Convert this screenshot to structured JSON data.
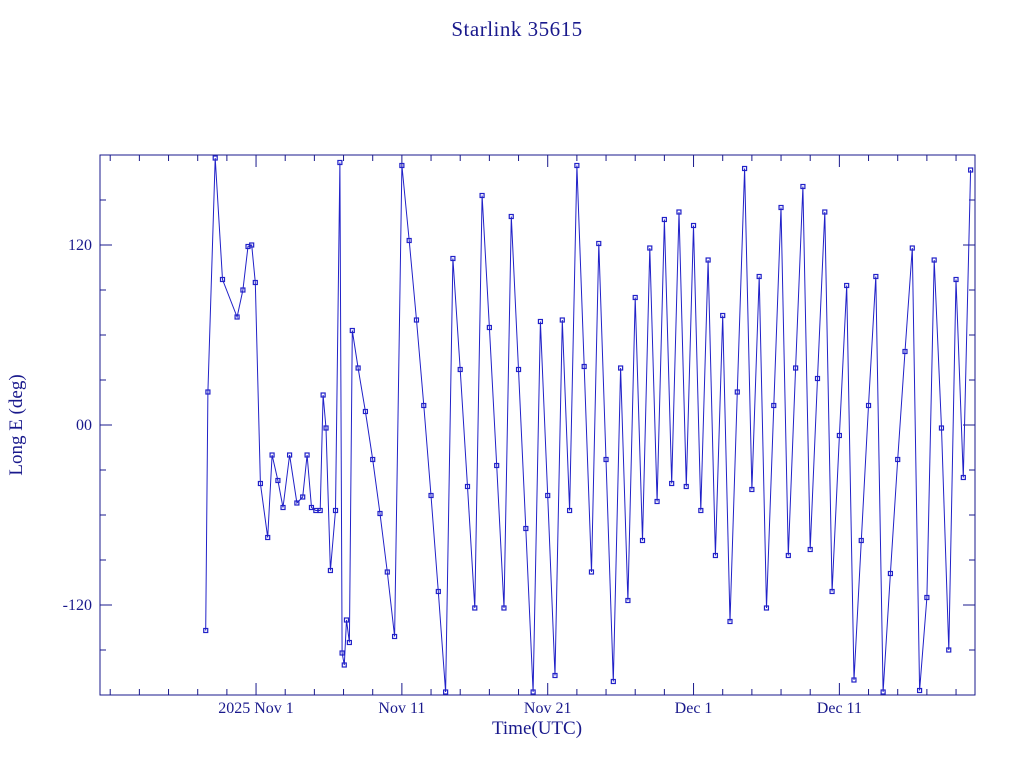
{
  "chart_data": {
    "type": "line",
    "title": "Starlink 35615",
    "xlabel": "Time(UTC)",
    "ylabel": "Long E (deg)",
    "xlim": [
      -6.7,
      53.3
    ],
    "ylim": [
      -180,
      180
    ],
    "x_ticks": [
      {
        "label": "2025 Nov 1",
        "t": 4
      },
      {
        "label": "Nov 11",
        "t": 14
      },
      {
        "label": "Nov 21",
        "t": 24
      },
      {
        "label": "Dec 1",
        "t": 34
      },
      {
        "label": "Dec 11",
        "t": 44
      }
    ],
    "y_ticks": [
      {
        "label": "120",
        "v": 120
      },
      {
        "label": "00",
        "v": 0
      },
      {
        "label": "-120",
        "v": -120
      }
    ],
    "x_minor_step": 2,
    "y_minor_step": 30,
    "grid": false,
    "legend": null,
    "marker": "open-square",
    "colors": {
      "text": "#19198c",
      "frame": "#19198c",
      "series": "#2121c8"
    },
    "points": [
      [
        0.55,
        -137
      ],
      [
        0.7,
        22
      ],
      [
        1.2,
        178
      ],
      [
        1.7,
        97
      ],
      [
        2.7,
        72
      ],
      [
        3.1,
        90
      ],
      [
        3.45,
        119
      ],
      [
        3.7,
        120
      ],
      [
        3.95,
        95
      ],
      [
        4.3,
        -39
      ],
      [
        4.8,
        -75
      ],
      [
        5.1,
        -20
      ],
      [
        5.5,
        -37
      ],
      [
        5.85,
        -55
      ],
      [
        6.3,
        -20
      ],
      [
        6.8,
        -52
      ],
      [
        7.2,
        -48
      ],
      [
        7.5,
        -20
      ],
      [
        7.8,
        -55
      ],
      [
        8.1,
        -57
      ],
      [
        8.4,
        -57
      ],
      [
        8.6,
        20
      ],
      [
        8.8,
        -2
      ],
      [
        9.1,
        -97
      ],
      [
        9.45,
        -57
      ],
      [
        9.75,
        175
      ],
      [
        9.9,
        -152
      ],
      [
        10.05,
        -160
      ],
      [
        10.2,
        -130
      ],
      [
        10.4,
        -145
      ],
      [
        10.6,
        63
      ],
      [
        11,
        38
      ],
      [
        11.5,
        9
      ],
      [
        12,
        -23
      ],
      [
        12.5,
        -59
      ],
      [
        13,
        -98
      ],
      [
        13.5,
        -141
      ],
      [
        14,
        173
      ],
      [
        14.5,
        123
      ],
      [
        15,
        70
      ],
      [
        15.5,
        13
      ],
      [
        16,
        -47
      ],
      [
        16.5,
        -111
      ],
      [
        17,
        -178
      ],
      [
        17.5,
        111
      ],
      [
        18,
        37
      ],
      [
        18.5,
        -41
      ],
      [
        19,
        -122
      ],
      [
        19.5,
        153
      ],
      [
        20,
        65
      ],
      [
        20.5,
        -27
      ],
      [
        21,
        -122
      ],
      [
        21.5,
        139
      ],
      [
        22,
        37
      ],
      [
        22.5,
        -69
      ],
      [
        23,
        -178
      ],
      [
        23.5,
        69
      ],
      [
        24,
        -47
      ],
      [
        24.5,
        -167
      ],
      [
        25,
        70
      ],
      [
        25.5,
        -57
      ],
      [
        26,
        173
      ],
      [
        26.5,
        39
      ],
      [
        27,
        -98
      ],
      [
        27.5,
        121
      ],
      [
        28,
        -23
      ],
      [
        28.5,
        -171
      ],
      [
        29,
        38
      ],
      [
        29.5,
        -117
      ],
      [
        30,
        85
      ],
      [
        30.5,
        -77
      ],
      [
        31,
        118
      ],
      [
        31.5,
        -51
      ],
      [
        32,
        137
      ],
      [
        32.5,
        -39
      ],
      [
        33,
        142
      ],
      [
        33.5,
        -41
      ],
      [
        34,
        133
      ],
      [
        34.5,
        -57
      ],
      [
        35,
        110
      ],
      [
        35.5,
        -87
      ],
      [
        36,
        73
      ],
      [
        36.5,
        -131
      ],
      [
        37,
        22
      ],
      [
        37.5,
        171
      ],
      [
        38,
        -43
      ],
      [
        38.5,
        99
      ],
      [
        39,
        -122
      ],
      [
        39.5,
        13
      ],
      [
        40,
        145
      ],
      [
        40.5,
        -87
      ],
      [
        41,
        38
      ],
      [
        41.5,
        159
      ],
      [
        42,
        -83
      ],
      [
        42.5,
        31
      ],
      [
        43,
        142
      ],
      [
        43.5,
        -111
      ],
      [
        44,
        -7
      ],
      [
        44.5,
        93
      ],
      [
        45,
        -170
      ],
      [
        45.5,
        -77
      ],
      [
        46,
        13
      ],
      [
        46.5,
        99
      ],
      [
        47,
        -178
      ],
      [
        47.5,
        -99
      ],
      [
        48,
        -23
      ],
      [
        48.5,
        49
      ],
      [
        49,
        118
      ],
      [
        49.5,
        -177
      ],
      [
        50,
        -115
      ],
      [
        50.5,
        110
      ],
      [
        51,
        -2
      ],
      [
        51.5,
        -150
      ],
      [
        52,
        97
      ],
      [
        52.5,
        -35
      ],
      [
        53,
        170
      ]
    ]
  }
}
